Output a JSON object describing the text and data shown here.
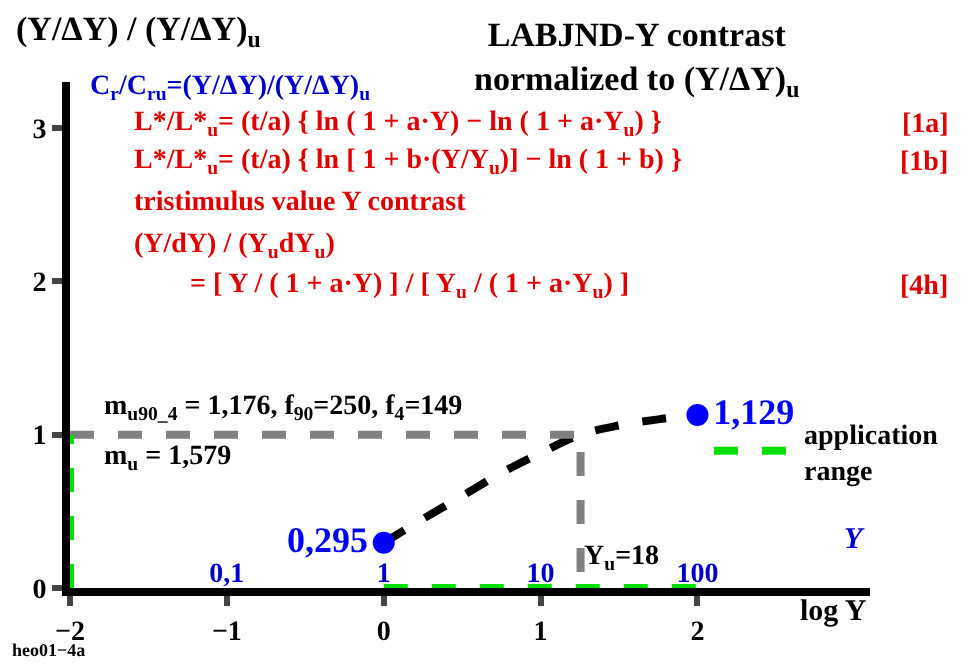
{
  "chart_data": {
    "type": "line",
    "title": "LABJND-Y contrast\nnormalized to (Y/ΔY)$_{u}$",
    "ylabel": "(Y/ΔY) / (Y/ΔY)$_{u}$",
    "xlabel": "log Y",
    "x2label": "Y",
    "xlim": [
      -2,
      3.1
    ],
    "ylim": [
      0,
      3.3
    ],
    "xticks": [
      {
        "value": -2,
        "label": "−2"
      },
      {
        "value": -1,
        "label": "−1"
      },
      0,
      1,
      2
    ],
    "yticks": [
      0,
      1,
      2,
      3
    ],
    "x2lim": [
      0.01,
      1259
    ],
    "x2ticks": [
      {
        "value": 0.1,
        "label": "0,1"
      },
      1,
      10,
      100
    ],
    "log": "x2",
    "legend": "right",
    "series": [
      {
        "color": "#000000",
        "line_style": "dashed",
        "marker": "none",
        "x": [
          0,
          0.25,
          0.5,
          0.75,
          1,
          1.255,
          1.5,
          1.75,
          2
        ],
        "values": [
          0.295,
          0.45,
          0.6,
          0.75,
          0.88,
          1.0,
          1.06,
          1.1,
          1.129
        ]
      },
      {
        "color": "#808080",
        "line_style": "dashed",
        "marker": "none",
        "x": [
          -2,
          1.255,
          1.255
        ],
        "values": [
          1,
          1,
          0
        ]
      },
      {
        "name": "application range",
        "color": "#00e000",
        "line_style": "dashed",
        "marker": "none",
        "x": [
          -2,
          -2,
          -1,
          0,
          2
        ],
        "values": [
          0,
          1,
          null,
          0,
          0
        ]
      },
      {
        "type": "scatter",
        "color": "#0000ff",
        "marker": "circle",
        "x": [
          0,
          2
        ],
        "values": [
          0.295,
          1.129
        ],
        "value_labels": [
          "0,295",
          "1,129"
        ]
      }
    ],
    "annotations": [
      "C$_{r}$/C$_{ru}$=(Y/ΔY)/(Y/ΔY)$_{u}$",
      "L*/L*$_{u}$= (t/a) { ln ( 1 + a·Y) − ln ( 1 + a·Y$_{u}$) }",
      "[1a]",
      "L*/L*$_{u}$= (t/a) { ln [ 1 + b·(Y/Y$_{u}$)] − ln ( 1 + b) }",
      "[1b]",
      "tristimulus value Y contrast",
      "(Y/dY) / (Y$_{u}$dY$_{u}$)",
      "= [ Y / ( 1 + a·Y) ] / [ Y$_{u}$ / ( 1 + a·Y$_{u}$) ]",
      "[4h]",
      "m$_{u90_4}$ = 1,176, f$_{90}$=250, f$_{4}$=149",
      "m$_{u}$ = 1,579",
      "heo01−4a",
      {
        "text": "Y$_{u}$=18",
        "x": 1.255,
        "y": 0
      }
    ]
  }
}
